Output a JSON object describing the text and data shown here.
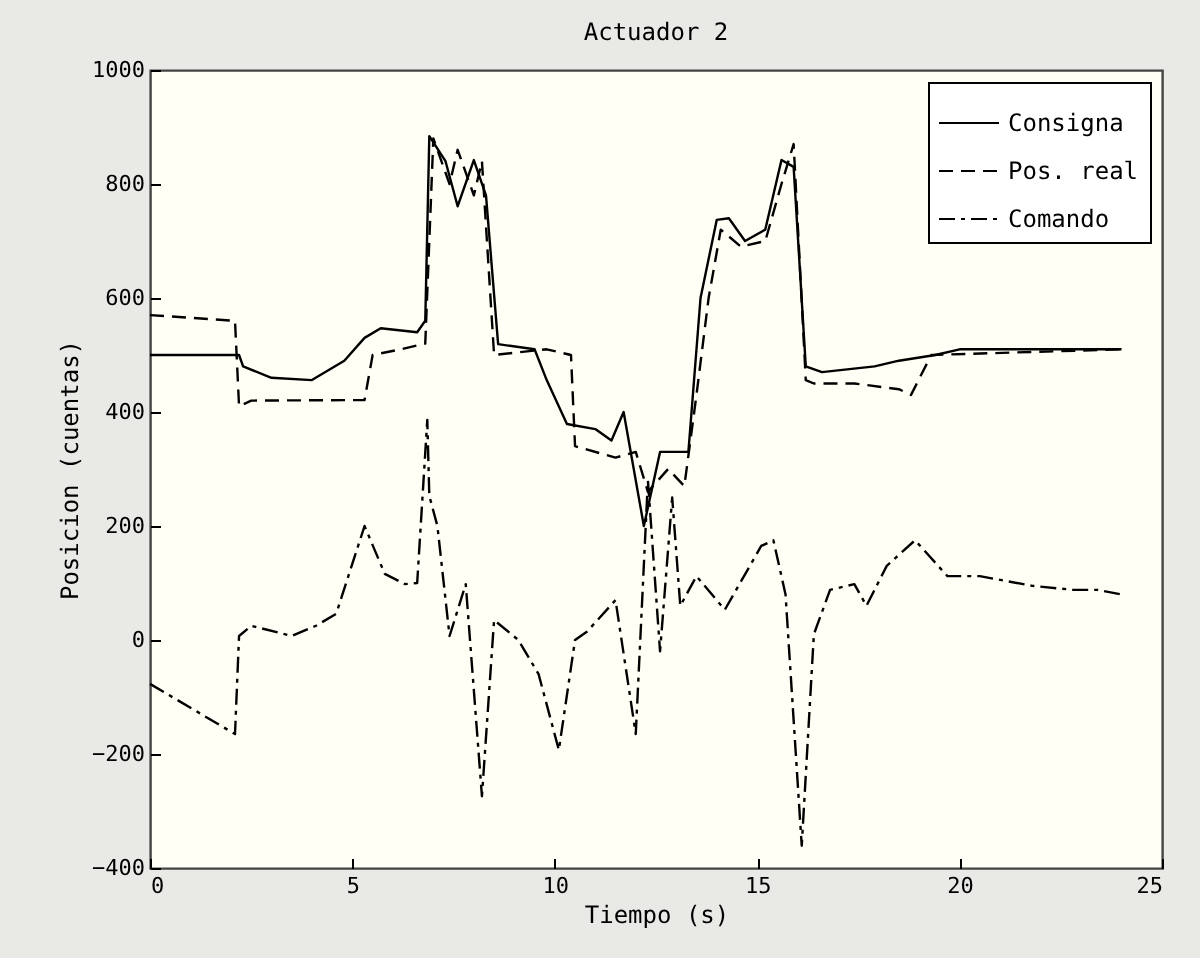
{
  "chart_data": {
    "type": "line",
    "title": "Actuador 2",
    "xlabel": "Tiempo (s)",
    "ylabel": "Posicion (cuentas)",
    "xlim": [
      0,
      25
    ],
    "xticks": [
      0,
      5,
      10,
      15,
      20,
      25
    ],
    "ylim": [
      -400,
      1000
    ],
    "yticks": [
      -400,
      -200,
      0,
      200,
      400,
      600,
      800,
      1000
    ],
    "grid": false,
    "legend": "top right",
    "marker": "none",
    "series": [
      {
        "name": "Consigna",
        "color": "#000000",
        "line_style": "solid",
        "x": [
          0,
          2.2,
          2.3,
          3,
          4,
          4.8,
          5.3,
          5.7,
          6.6,
          6.8,
          6.9,
          7.3,
          7.6,
          8,
          8.3,
          8.6,
          9.5,
          9.8,
          10.3,
          11,
          11.4,
          11.7,
          12.2,
          12.6,
          13.3,
          13.6,
          14,
          14.3,
          14.7,
          15.2,
          15.6,
          15.9,
          16.2,
          16.6,
          17.9,
          18.5,
          19.4,
          20,
          24
        ],
        "values": [
          500,
          500,
          480,
          460,
          456,
          490,
          530,
          547,
          540,
          560,
          884,
          840,
          761,
          842,
          780,
          519,
          510,
          456,
          379,
          370,
          350,
          400,
          200,
          330,
          330,
          600,
          737,
          740,
          700,
          720,
          842,
          830,
          480,
          470,
          480,
          490,
          500,
          510,
          510
        ]
      },
      {
        "name": "Pos. real",
        "color": "#000000",
        "line_style": "dashed",
        "x": [
          0,
          2.1,
          2.2,
          2.5,
          5.3,
          5.5,
          6.2,
          6.8,
          7,
          7.4,
          7.6,
          8,
          8.2,
          8.5,
          9.8,
          10.4,
          10.5,
          11.5,
          12,
          12.3,
          12.8,
          13.2,
          13.5,
          13.8,
          14.1,
          14.6,
          15.2,
          15.6,
          15.9,
          16.2,
          16.4,
          17.4,
          18.5,
          18.8,
          19.3,
          24
        ],
        "values": [
          570,
          560,
          410,
          420,
          421,
          500,
          510,
          520,
          880,
          800,
          860,
          780,
          840,
          500,
          510,
          500,
          340,
          320,
          330,
          260,
          300,
          270,
          430,
          600,
          720,
          690,
          700,
          800,
          870,
          456,
          450,
          450,
          440,
          430,
          500,
          510
        ]
      },
      {
        "name": "Comando",
        "color": "#000000",
        "line_style": "dashdot",
        "x": [
          0,
          2.1,
          2.2,
          2.5,
          3.5,
          4.1,
          4.6,
          5.3,
          5.8,
          6.3,
          6.6,
          6.85,
          6.9,
          7.1,
          7.4,
          7.8,
          8.2,
          8.5,
          9.1,
          9.6,
          10.1,
          10.5,
          10.8,
          11.5,
          12,
          12.3,
          12.6,
          12.9,
          13.1,
          13.5,
          14.2,
          15.1,
          15.4,
          15.7,
          16.1,
          16.4,
          16.8,
          17.4,
          17.7,
          18.2,
          18.9,
          19.7,
          20.5,
          21.8,
          22.8,
          23.4,
          24
        ],
        "values": [
          -77,
          -165,
          7,
          25,
          7,
          25,
          46,
          200,
          116,
          98,
          100,
          386,
          253,
          200,
          7,
          98,
          -274,
          35,
          0,
          -60,
          -193,
          0,
          15,
          70,
          -165,
          280,
          -20,
          250,
          60,
          112,
          53,
          165,
          175,
          80,
          -361,
          10,
          88,
          98,
          60,
          130,
          175,
          112,
          112,
          95,
          88,
          88,
          80
        ]
      }
    ]
  }
}
